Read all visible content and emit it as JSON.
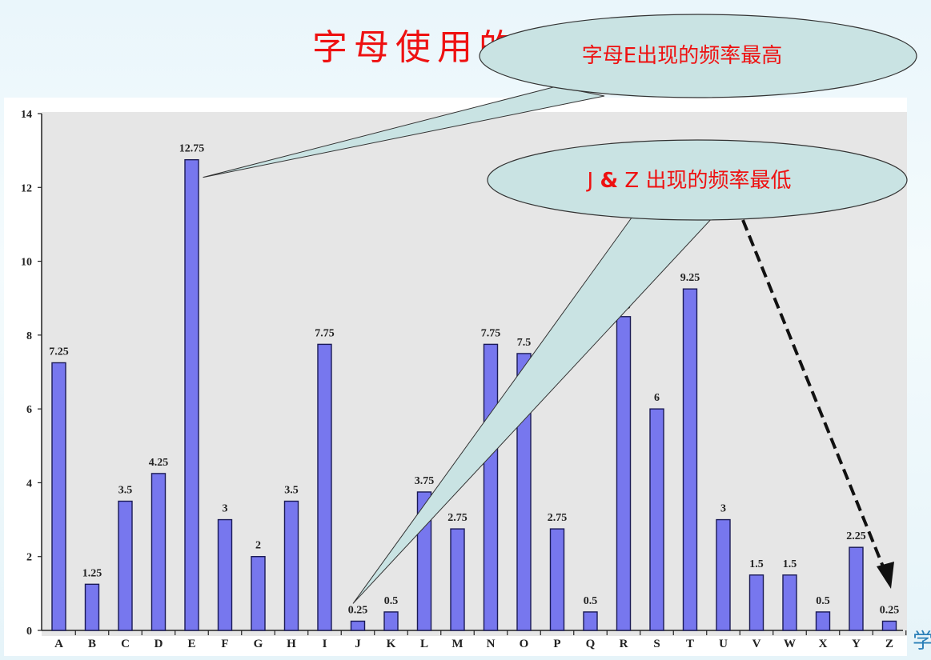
{
  "slide": {
    "title": "字母使用的",
    "footer_logo_text": "学",
    "accent_color": "#ee1111"
  },
  "chart_data": {
    "type": "bar",
    "title": "",
    "xlabel": "",
    "ylabel": "",
    "ylim": [
      0,
      14
    ],
    "y_ticks": [
      0,
      2,
      4,
      6,
      8,
      10,
      12,
      14
    ],
    "grid": false,
    "bar_color": "#7777ee",
    "categories": [
      "A",
      "B",
      "C",
      "D",
      "E",
      "F",
      "G",
      "H",
      "I",
      "J",
      "K",
      "L",
      "M",
      "N",
      "O",
      "P",
      "Q",
      "R",
      "S",
      "T",
      "U",
      "V",
      "W",
      "X",
      "Y",
      "Z"
    ],
    "values": [
      7.25,
      1.25,
      3.5,
      4.25,
      12.75,
      3,
      2,
      3.5,
      7.75,
      0.25,
      0.5,
      3.75,
      2.75,
      7.75,
      7.5,
      2.75,
      0.5,
      8.5,
      6,
      9.25,
      3,
      1.5,
      1.5,
      0.5,
      2.25,
      0.25
    ],
    "value_labels": [
      "7.25",
      "1.25",
      "3.5",
      "4.25",
      "12.75",
      "3",
      "2",
      "3.5",
      "7.75",
      "0.25",
      "0.5",
      "3.75",
      "2.75",
      "7.75",
      "7.5",
      "2.75",
      "0.5",
      "8.5",
      "6",
      "9.25",
      "3",
      "1.5",
      "1.5",
      "0.5",
      "2.25",
      "0.25"
    ],
    "annotations": [
      {
        "text_parts": [
          {
            "text": "字母E出现的频率最高",
            "bold": false
          }
        ],
        "points_to": "E"
      },
      {
        "text_parts": [
          {
            "text": "J ",
            "bold": false
          },
          {
            "text": "&",
            "bold": true
          },
          {
            "text": " Z 出现的频率最低",
            "bold": false
          }
        ],
        "points_to": [
          "J",
          "Z"
        ]
      }
    ]
  }
}
